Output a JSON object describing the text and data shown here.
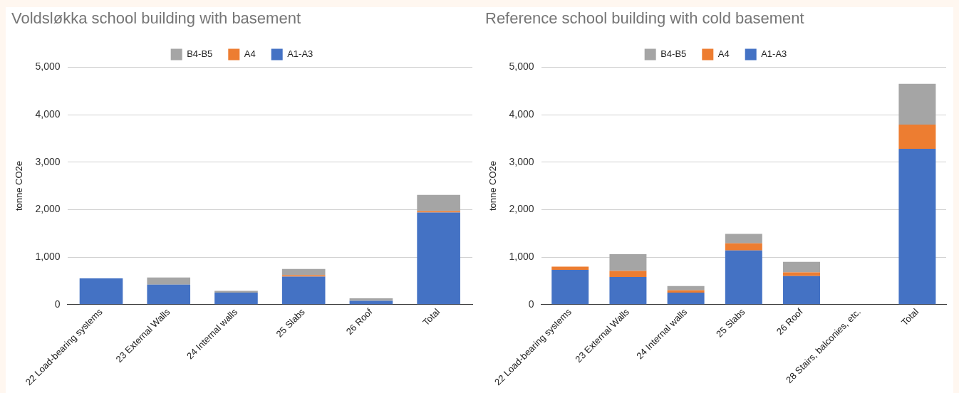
{
  "chart_data": [
    {
      "type": "bar",
      "title": "Voldsløkka school building with basement",
      "ylabel": "tonne CO2e",
      "stacked": true,
      "legend": "top",
      "grid": "y",
      "categories": [
        "22 Load-bearing systems",
        "23 External Walls",
        "24 Internal walls",
        "25 Slabs",
        "26 Roof",
        "Total"
      ],
      "series": [
        {
          "name": "A1-A3",
          "color": "#4472c4",
          "values": [
            550,
            420,
            250,
            590,
            80,
            1940
          ]
        },
        {
          "name": "A4",
          "color": "#ed7d31",
          "values": [
            0,
            0,
            0,
            30,
            0,
            30
          ]
        },
        {
          "name": "B4-B5",
          "color": "#a5a5a5",
          "values": [
            0,
            150,
            40,
            130,
            50,
            340
          ]
        }
      ],
      "ylim": [
        0,
        5000
      ],
      "yticks": [
        0,
        {
          "value": 1000,
          "label": "1,000"
        },
        {
          "value": 2000,
          "label": "2,000"
        },
        {
          "value": 3000,
          "label": "3,000"
        },
        {
          "value": 4000,
          "label": "4,000"
        },
        {
          "value": 5000,
          "label": "5,000"
        }
      ]
    },
    {
      "type": "bar",
      "title": "Reference school building with cold basement",
      "ylabel": "tonne CO2e",
      "stacked": true,
      "legend": "top",
      "grid": "y",
      "categories": [
        "22 Load-bearing systems",
        "23 External Walls",
        "24 Internal walls",
        "25 Slabs",
        "26 Roof",
        "28 Stairs, balconies, etc.",
        "Total"
      ],
      "series": [
        {
          "name": "A1-A3",
          "color": "#4472c4",
          "values": [
            730,
            580,
            250,
            1140,
            600,
            null,
            3280
          ]
        },
        {
          "name": "A4",
          "color": "#ed7d31",
          "values": [
            70,
            130,
            50,
            150,
            80,
            0,
            510
          ]
        },
        {
          "name": "B4-B5",
          "color": "#a5a5a5",
          "values": [
            0,
            350,
            90,
            200,
            220,
            0,
            860
          ]
        }
      ],
      "ylim": [
        0,
        5000
      ],
      "yticks": [
        0,
        {
          "value": 1000,
          "label": "1,000"
        },
        {
          "value": 2000,
          "label": "2,000"
        },
        {
          "value": 3000,
          "label": "3,000"
        },
        {
          "value": 4000,
          "label": "4,000"
        },
        {
          "value": 5000,
          "label": "5,000"
        }
      ]
    }
  ]
}
